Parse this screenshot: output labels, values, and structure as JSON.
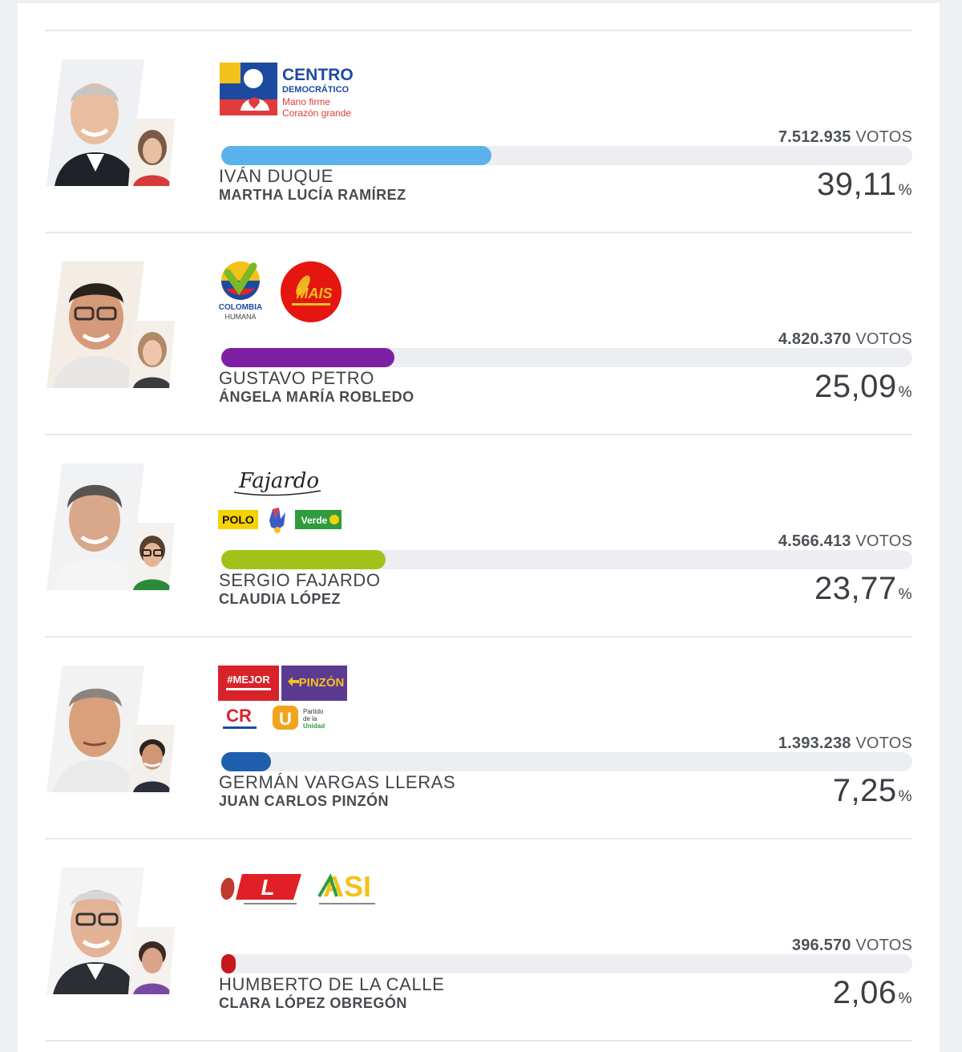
{
  "candidates": [
    {
      "president": "IVÁN DUQUE",
      "vice": "MARTHA LUCÍA RAMÍREZ",
      "votes": "7.512.935",
      "votes_suffix": " VOTOS",
      "percent": "39,11",
      "percent_value": 39.11,
      "percent_symbol": "%",
      "bar_color": "#5ab2ec",
      "logos": {
        "name": "CENTRO",
        "name2": "DEMOCRÁTICO",
        "slogan1": "Mano firme",
        "slogan2": "Corazón grande"
      }
    },
    {
      "president": "GUSTAVO PETRO",
      "vice": "ÁNGELA MARÍA ROBLEDO",
      "votes": "4.820.370",
      "votes_suffix": " VOTOS",
      "percent": "25,09",
      "percent_value": 25.09,
      "percent_symbol": "%",
      "bar_color": "#7d1fa3",
      "logos": {
        "party1a": "COLOMBIA",
        "party1b": "HUMANA",
        "party2": "MAIS"
      }
    },
    {
      "president": "SERGIO FAJARDO",
      "vice": "CLAUDIA LÓPEZ",
      "votes": "4.566.413",
      "votes_suffix": " VOTOS",
      "percent": "23,77",
      "percent_value": 23.77,
      "percent_symbol": "%",
      "bar_color": "#a2c21a",
      "logos": {
        "signature": "Fajardo",
        "party1": "POLO",
        "party2": "Verde"
      }
    },
    {
      "president": "GERMÁN VARGAS LLERAS",
      "vice": "JUAN CARLOS PINZÓN",
      "votes": "1.393.238",
      "votes_suffix": " VOTOS",
      "percent": "7,25",
      "percent_value": 7.25,
      "percent_symbol": "%",
      "bar_color": "#1f5fae",
      "logos": {
        "party1": "#MEJOR",
        "party2": "PINZÓN",
        "party3": "CR",
        "party4": "U",
        "party4_text1": "Partido",
        "party4_text2": "de la",
        "party4_text3": "Unidad"
      }
    },
    {
      "president": "HUMBERTO DE LA CALLE",
      "vice": "CLARA LÓPEZ OBREGÓN",
      "votes": "396.570",
      "votes_suffix": " VOTOS",
      "percent": "2,06",
      "percent_value": 2.06,
      "percent_symbol": "%",
      "bar_color": "#c8171c",
      "logos": {
        "party1": "L",
        "party2": "ASI"
      }
    }
  ]
}
